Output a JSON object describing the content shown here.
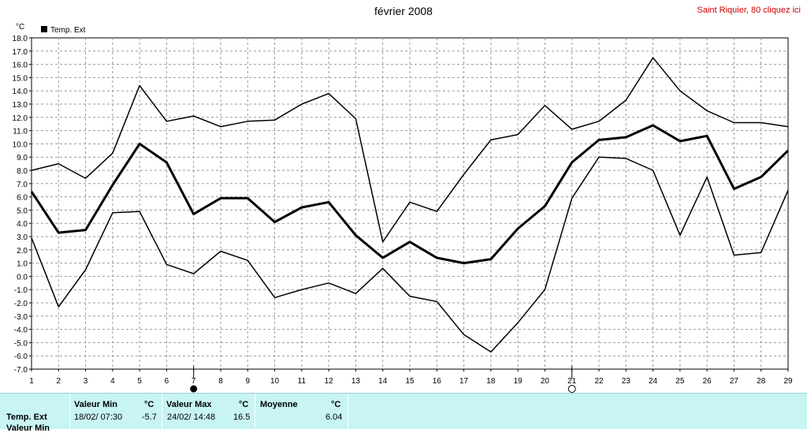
{
  "header": {
    "title": "février 2008",
    "site_link": "Saint Riquier, 80 cliquez ici"
  },
  "chart_data": {
    "type": "line",
    "title": "février 2008",
    "ylabel": "°C",
    "ylim": [
      -7,
      18
    ],
    "xlim": [
      1,
      29
    ],
    "grid": true,
    "legend_position": "top-left",
    "legend": [
      "Temp. Ext"
    ],
    "x": [
      1,
      2,
      3,
      4,
      5,
      6,
      7,
      8,
      9,
      10,
      11,
      12,
      13,
      14,
      15,
      16,
      17,
      18,
      19,
      20,
      21,
      22,
      23,
      24,
      25,
      26,
      27,
      28,
      29
    ],
    "x_tick_labels": [
      "1",
      "2",
      "3",
      "4",
      "5",
      "6",
      "7",
      "8",
      "9",
      "10",
      "11",
      "12",
      "13",
      "14",
      "15",
      "16",
      "17",
      "18",
      "19",
      "20",
      "21",
      "22",
      "23",
      "24",
      "25",
      "26",
      "27",
      "28",
      "29"
    ],
    "y_tick_labels": [
      "18.0",
      "17.0",
      "16.0",
      "15.0",
      "14.0",
      "13.0",
      "12.0",
      "11.0",
      "10.0",
      "9.0",
      "8.0",
      "7.0",
      "6.0",
      "5.0",
      "4.0",
      "3.0",
      "2.0",
      "1.0",
      "0.0",
      "-1.0",
      "-2.0",
      "-3.0",
      "-4.0",
      "-5.0",
      "-6.0",
      "-7.0"
    ],
    "series": [
      {
        "name": "Temp. Ext",
        "values": [
          8.0,
          8.5,
          7.4,
          9.3,
          14.4,
          11.7,
          12.1,
          11.3,
          11.7,
          11.8,
          13.0,
          13.8,
          11.9,
          2.6,
          5.6,
          4.9,
          7.7,
          10.3,
          10.7,
          12.9,
          11.1,
          11.7,
          13.3,
          16.5,
          14.0,
          12.5,
          11.6,
          11.6,
          11.3
        ]
      },
      {
        "name": "Temp. Ext",
        "values": [
          6.4,
          3.3,
          3.5,
          6.9,
          10.0,
          8.6,
          4.7,
          5.9,
          5.9,
          4.1,
          5.2,
          5.6,
          3.1,
          1.4,
          2.6,
          1.4,
          1.0,
          1.3,
          3.6,
          5.3,
          8.6,
          10.3,
          10.5,
          11.4,
          10.2,
          10.6,
          6.6,
          7.5,
          9.5
        ]
      },
      {
        "name": "Temp. Ext",
        "values": [
          2.9,
          -2.3,
          0.5,
          4.8,
          4.9,
          0.9,
          0.2,
          1.9,
          1.2,
          -1.6,
          -1.0,
          -0.5,
          -1.3,
          0.6,
          -1.5,
          -1.9,
          -4.4,
          -5.7,
          -3.5,
          -1.0,
          5.9,
          9.0,
          8.9,
          8.0,
          3.1,
          7.5,
          1.6,
          1.8,
          6.5
        ]
      }
    ],
    "moon_markers": [
      {
        "day": 7,
        "phase": "new-moon"
      },
      {
        "day": 21,
        "phase": "full-moon"
      }
    ]
  },
  "stats": {
    "row_label": "Temp. Ext",
    "row_label_2": "Valeur Min",
    "min_header": "Valeur Min",
    "max_header": "Valeur Max",
    "avg_header": "Moyenne",
    "unit": "°C",
    "min_date": "18/02/ 07:30",
    "min_value": "-5.7",
    "max_date": "24/02/ 14:48",
    "max_value": "16.5",
    "avg_value": "6.04"
  }
}
